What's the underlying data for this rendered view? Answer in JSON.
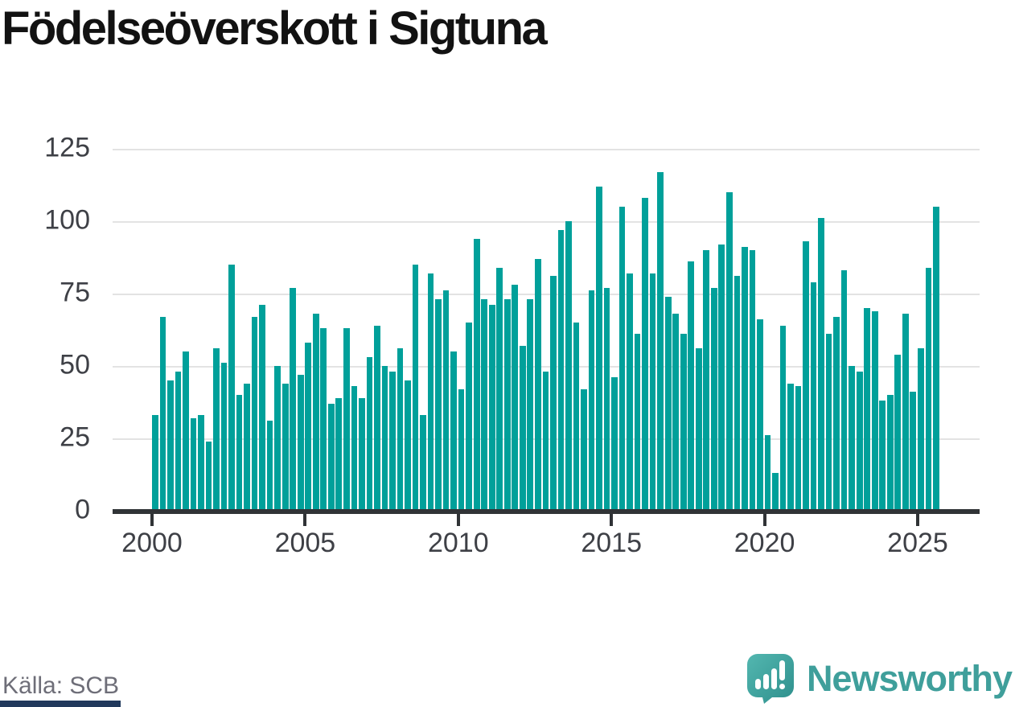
{
  "title": "Födelseöverskott i Sigtuna",
  "source": "Källa: SCB",
  "brand": {
    "name": "Newsworthy"
  },
  "colors": {
    "bar": "#00a09a",
    "axis": "#303336",
    "grid": "#e3e3e3",
    "tick_label": "#3e4046",
    "title": "#121212",
    "source_text": "#6e6e78",
    "brand_text": "#3f9f9b",
    "brand_icon_light": "#53b7b0",
    "brand_icon_dark": "#2e8f8c",
    "footer_strip": "#21395c"
  },
  "chart_data": {
    "type": "bar",
    "title": "Födelseöverskott i Sigtuna",
    "frequency": "quarterly",
    "start_period": "2000Q1",
    "end_period": "2025Q3",
    "values": [
      33,
      67,
      45,
      48,
      55,
      32,
      33,
      24,
      56,
      51,
      85,
      40,
      44,
      67,
      71,
      31,
      50,
      44,
      77,
      47,
      58,
      68,
      63,
      37,
      39,
      63,
      43,
      39,
      53,
      64,
      50,
      48,
      56,
      45,
      85,
      33,
      82,
      73,
      76,
      55,
      42,
      65,
      94,
      73,
      71,
      84,
      73,
      78,
      57,
      73,
      87,
      48,
      81,
      97,
      100,
      65,
      42,
      76,
      112,
      77,
      46,
      105,
      82,
      61,
      108,
      82,
      117,
      74,
      68,
      61,
      86,
      56,
      90,
      77,
      92,
      110,
      81,
      91,
      90,
      66,
      26,
      13,
      64,
      44,
      43,
      93,
      79,
      101,
      61,
      67,
      83,
      50,
      48,
      70,
      69,
      38,
      40,
      54,
      68,
      41,
      56,
      84,
      105
    ],
    "x_tick_labels": [
      "2000",
      "2005",
      "2010",
      "2015",
      "2020",
      "2025"
    ],
    "y_ticks": [
      0,
      25,
      50,
      75,
      100,
      125
    ],
    "ylim": [
      0,
      129
    ],
    "xlabel": "",
    "ylabel": "",
    "grid": "horizontal",
    "legend": "none",
    "bar_color": "#00a09a"
  }
}
